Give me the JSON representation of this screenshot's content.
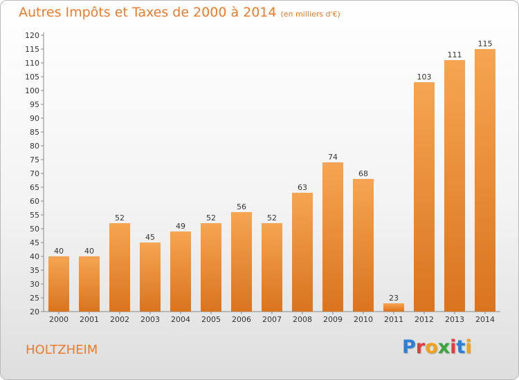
{
  "title": "Autres Impôts et Taxes de 2000 à 2014",
  "unit": "(en milliers d'€)",
  "commune": "HOLTZHEIM",
  "logo": "Proxiti",
  "colors": {
    "bar_top": "#f6a552",
    "bar_bottom": "#d9741f",
    "title": "#ee7a2a",
    "logo": [
      "#2b7fd6",
      "#e23c3c",
      "#f0a21e",
      "#3aa63a",
      "#e23c3c",
      "#2b7fd6",
      "#f0a21e"
    ]
  },
  "chart_data": {
    "type": "bar",
    "categories": [
      "2000",
      "2001",
      "2002",
      "2003",
      "2004",
      "2005",
      "2006",
      "2007",
      "2008",
      "2009",
      "2010",
      "2011",
      "2012",
      "2013",
      "2014"
    ],
    "values": [
      40,
      40,
      52,
      45,
      49,
      52,
      56,
      52,
      63,
      74,
      68,
      23,
      103,
      111,
      115
    ],
    "ylim": [
      20,
      120
    ],
    "yticks": [
      20,
      25,
      30,
      35,
      40,
      45,
      50,
      55,
      60,
      65,
      70,
      75,
      80,
      85,
      90,
      95,
      100,
      105,
      110,
      115,
      120
    ],
    "grid": false
  }
}
